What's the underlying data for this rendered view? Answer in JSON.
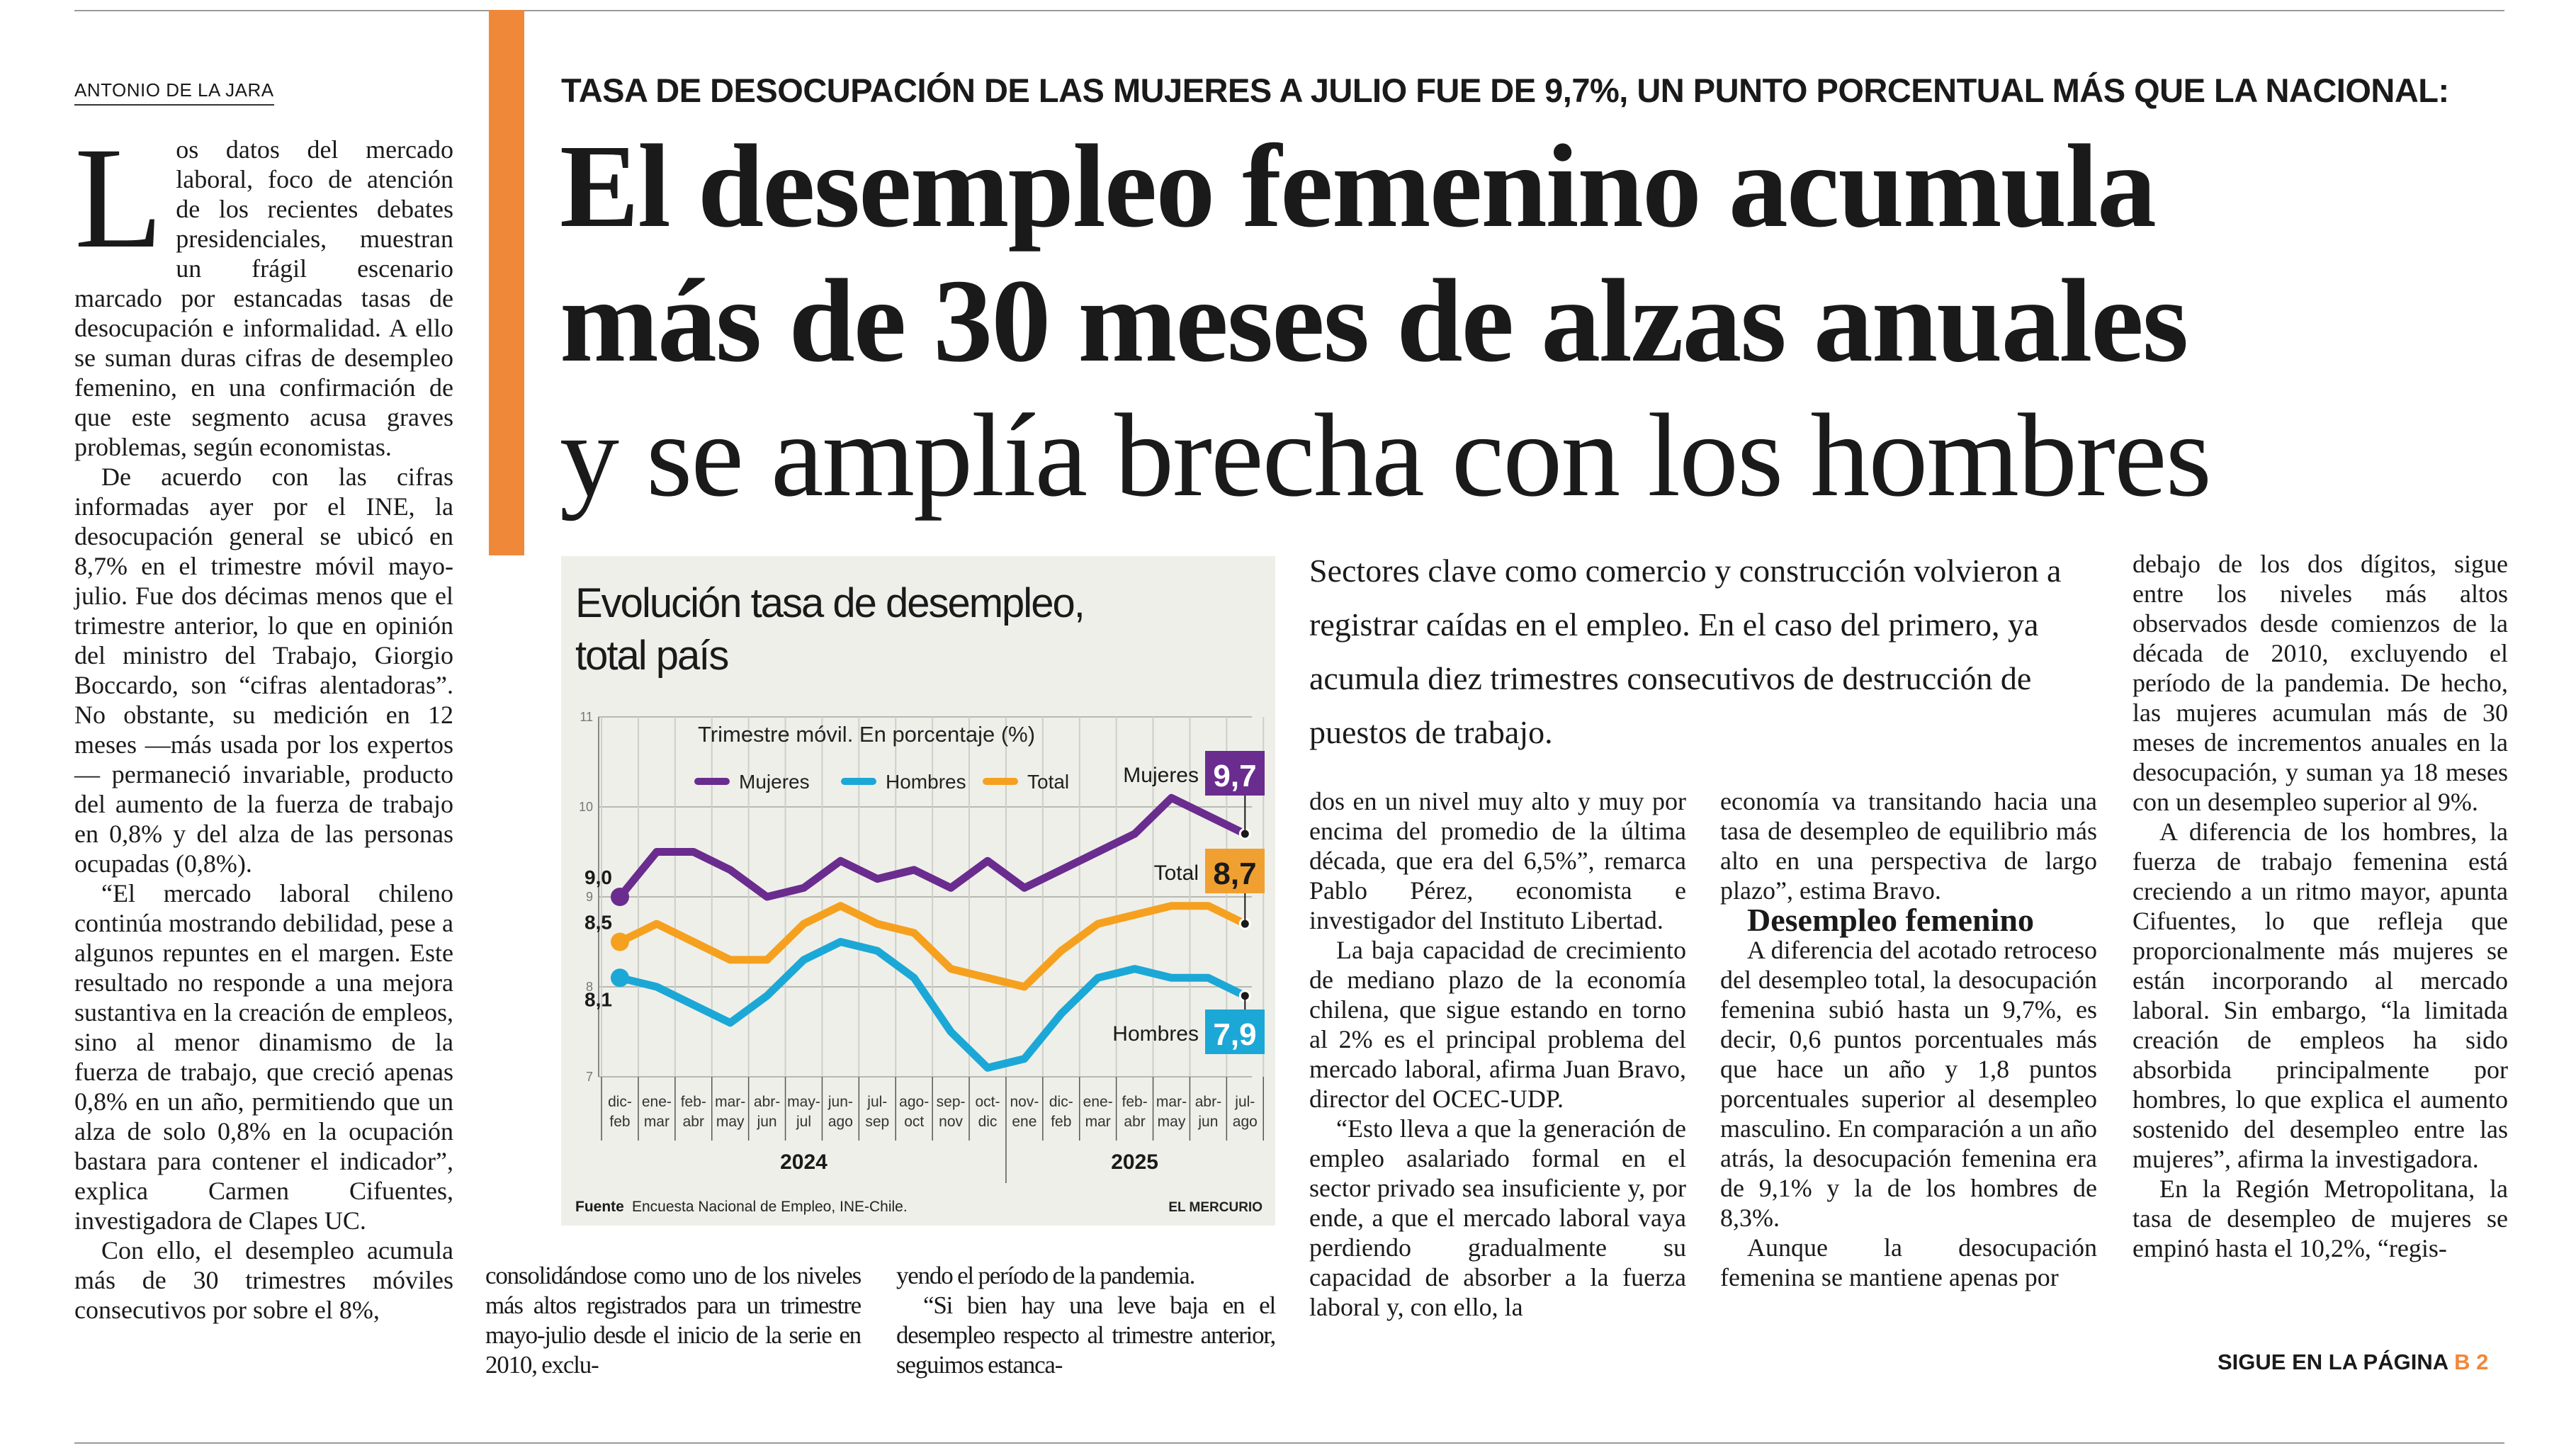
{
  "byline": "ANTONIO DE LA JARA",
  "kicker": "TASA DE DESOCUPACIÓN DE LAS MUJERES A JULIO FUE DE 9,7%, UN PUNTO PORCENTUAL MÁS QUE LA NACIONAL:",
  "headline": [
    "El desempleo femenino acumula",
    "más de 30 meses de alzas anuales",
    "y se amplía brecha con los hombres"
  ],
  "deck": "Sectores clave como comercio y construcción volvieron a registrar caídas en el empleo. En el caso del primero, ya acumula diez trimestres consecutivos de destrucción de puestos de trabajo.",
  "col1": {
    "dropcap": "L",
    "p1": "os datos del mercado laboral, foco de atención de los recientes debates presidenciales, muestran un frágil escenario marcado por estancadas tasas de desocupación e informalidad. A ello se suman duras cifras de desempleo femenino, en una confirmación de que este segmento acusa graves problemas, según economistas.",
    "p2": "De acuerdo con las cifras informadas ayer por el INE, la desocupación general se ubicó en 8,7% en el trimestre móvil mayo-julio. Fue dos décimas menos que el trimestre anterior, lo que en opinión del ministro del Trabajo, Giorgio Boccardo, son “cifras alentadoras”. No obstante, su medición en 12 meses —más usada por los expertos— permaneció invariable, producto del aumento de la fuerza de trabajo en 0,8% y del alza de las personas ocupadas (0,8%).",
    "p3": "“El mercado laboral chileno continúa mostrando debilidad, pese a algunos repuntes en el margen. Este resultado no responde a una mejora sustantiva en la creación de empleos, sino al menor dinamismo de la fuerza de trabajo, que creció apenas 0,8% en un año, permitiendo que un alza de solo 0,8% en la ocupación bastara para contener el indicador”, explica Carmen Cifuentes, investigadora de Clapes UC.",
    "p4": "Con ello, el desempleo acumula más de 30 trimestres móviles consecutivos por sobre el 8%,"
  },
  "col2a": {
    "p1": "consolidándose como uno de los niveles más altos registrados para un trimestre mayo-julio desde el inicio de la serie en 2010, exclu-"
  },
  "col2b": {
    "p1": "yendo el período de la pandemia.",
    "p2": "“Si bien hay una leve baja en el desempleo respecto al trimestre anterior, seguimos estanca-"
  },
  "col3": {
    "p1": "dos en un nivel muy alto y muy por encima del promedio de la última década, que era del 6,5%”, remarca Pablo Pérez, economista e investigador del Instituto Libertad.",
    "p2": "La baja capacidad de crecimiento de mediano plazo de la economía chilena, que sigue estando en torno al 2% es el principal problema del mercado laboral, afirma Juan Bravo, director del OCEC-UDP.",
    "p3": "“Esto lleva a que la generación de empleo asalariado formal en el sector privado sea insuficiente y, por ende, a que el mercado laboral vaya perdiendo gradualmente su capacidad de absorber a la fuerza laboral y, con ello, la"
  },
  "col4": {
    "p1": "economía va transitando hacia una tasa de desempleo de equilibrio más alto en una perspectiva de largo plazo”, estima Bravo.",
    "subhead": "Desempleo femenino",
    "p2": "A diferencia del acotado retroceso del desempleo total, la desocupación femenina subió hasta un 9,7%, es decir, 0,6 puntos porcentuales más que hace un año y 1,8 puntos porcentuales superior al desempleo masculino. En comparación a un año atrás, la desocupación femenina era de 9,1% y la de los hombres de 8,3%.",
    "p3": "Aunque la desocupación femenina se mantiene apenas por"
  },
  "col5": {
    "p1": "debajo de los dos dígitos, sigue entre los niveles más altos observados desde comienzos de la década de 2010, excluyendo el período de la pandemia. De hecho, las mujeres acumulan más de 30 meses de incrementos anuales en la desocupación, y suman ya 18 meses con un desempleo superior al 9%.",
    "p2": "A diferencia de los hombres, la fuerza de trabajo femenina está creciendo a un ritmo mayor, apunta Cifuentes, lo que refleja que proporcionalmente más mujeres se están incorporando al mercado laboral. Sin embargo, “la limitada creación de empleos ha sido absorbida principalmente por hombres, lo que explica el aumento sostenido del desempleo entre las mujeres”, afirma la investigadora.",
    "p3": "En la Región Metropolitana, la tasa de desempleo de mujeres se empinó hasta el 10,2%, “regis-"
  },
  "continuation": {
    "label": "SIGUE EN LA PÁGINA",
    "page": "B 2"
  },
  "colors": {
    "accent": "#f0883a",
    "mujeres": "#6a2c8e",
    "hombres": "#1ba8d6",
    "total": "#f5a11f",
    "chart_bg": "#efefe9"
  },
  "chart_data": {
    "type": "line",
    "title": "Evolución tasa de desempleo, total país",
    "subtitle": "Trimestre móvil. En porcentaje (%)",
    "categories": [
      [
        "dic-",
        "feb"
      ],
      [
        "ene-",
        "mar"
      ],
      [
        "feb-",
        "abr"
      ],
      [
        "mar-",
        "may"
      ],
      [
        "abr-",
        "jun"
      ],
      [
        "may-",
        "jul"
      ],
      [
        "jun-",
        "ago"
      ],
      [
        "jul-",
        "sep"
      ],
      [
        "ago-",
        "oct"
      ],
      [
        "sep-",
        "nov"
      ],
      [
        "oct-",
        "dic"
      ],
      [
        "nov-",
        "ene"
      ],
      [
        "dic-",
        "feb"
      ],
      [
        "ene-",
        "mar"
      ],
      [
        "feb-",
        "abr"
      ],
      [
        "mar-",
        "may"
      ],
      [
        "abr-",
        "jun"
      ],
      [
        "jul-",
        "ago"
      ]
    ],
    "years": [
      {
        "label": "2024",
        "from": 0,
        "to": 10
      },
      {
        "label": "2025",
        "from": 11,
        "to": 17
      }
    ],
    "ylim": [
      7,
      11
    ],
    "yticks": [
      "7",
      "8",
      "9",
      "10",
      "11"
    ],
    "grid": true,
    "legend": "top",
    "series": [
      {
        "name": "Mujeres",
        "key": "mujeres",
        "values": [
          9.0,
          9.5,
          9.5,
          9.3,
          9.0,
          9.1,
          9.4,
          9.2,
          9.3,
          9.1,
          9.4,
          9.1,
          9.3,
          9.5,
          9.7,
          10.1,
          9.9,
          9.7
        ],
        "start_label": "9,0",
        "end_label": "9,7"
      },
      {
        "name": "Hombres",
        "key": "hombres",
        "values": [
          8.1,
          8.0,
          7.8,
          7.6,
          7.9,
          8.3,
          8.5,
          8.4,
          8.1,
          7.5,
          7.1,
          7.2,
          7.7,
          8.1,
          8.2,
          8.1,
          8.1,
          7.9
        ],
        "start_label": "8,1",
        "end_label": "7,9"
      },
      {
        "name": "Total",
        "key": "total",
        "values": [
          8.5,
          8.7,
          8.5,
          8.3,
          8.3,
          8.7,
          8.9,
          8.7,
          8.6,
          8.2,
          8.1,
          8.0,
          8.4,
          8.7,
          8.8,
          8.9,
          8.9,
          8.7
        ],
        "start_label": "8,5",
        "end_label": "8,7"
      }
    ],
    "source_label": "Fuente",
    "source": "Encuesta Nacional de Empleo, INE-Chile.",
    "credit": "EL MERCURIO"
  }
}
